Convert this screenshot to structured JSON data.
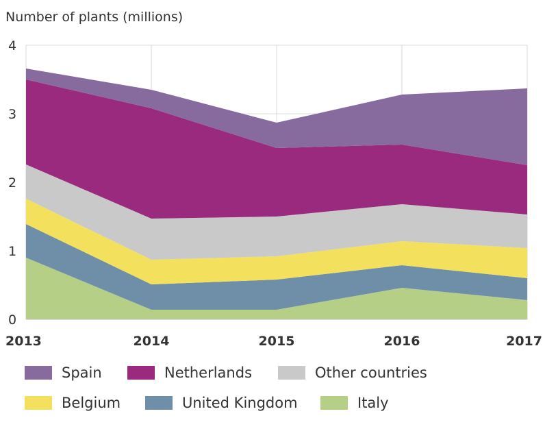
{
  "chart_data": {
    "type": "area",
    "stacked": true,
    "ylabel": "Number of plants (millions)",
    "x": [
      "2013",
      "2014",
      "2015",
      "2016",
      "2017"
    ],
    "ylim": [
      0,
      4
    ],
    "yticks": [
      "0",
      "1",
      "2",
      "3",
      "4"
    ],
    "grid": true,
    "legend_position": "bottom",
    "series": [
      {
        "name": "Italy",
        "color": "#b5cf87",
        "values": [
          0.9,
          0.14,
          0.14,
          0.46,
          0.28
        ]
      },
      {
        "name": "United Kingdom",
        "color": "#6f8fa9",
        "values": [
          0.49,
          0.37,
          0.44,
          0.33,
          0.32
        ]
      },
      {
        "name": "Belgium",
        "color": "#f3e05c",
        "values": [
          0.37,
          0.36,
          0.34,
          0.35,
          0.44
        ]
      },
      {
        "name": "Other countries",
        "color": "#c9c9c9",
        "values": [
          0.5,
          0.6,
          0.58,
          0.54,
          0.49
        ]
      },
      {
        "name": "Netherlands",
        "color": "#9a2a7d",
        "values": [
          1.24,
          1.61,
          1.0,
          0.87,
          0.72
        ]
      },
      {
        "name": "Spain",
        "color": "#876b9e",
        "values": [
          0.16,
          0.27,
          0.37,
          0.73,
          1.12
        ]
      }
    ],
    "legend_order": [
      "Spain",
      "Netherlands",
      "Other countries",
      "Belgium",
      "United Kingdom",
      "Italy"
    ]
  }
}
